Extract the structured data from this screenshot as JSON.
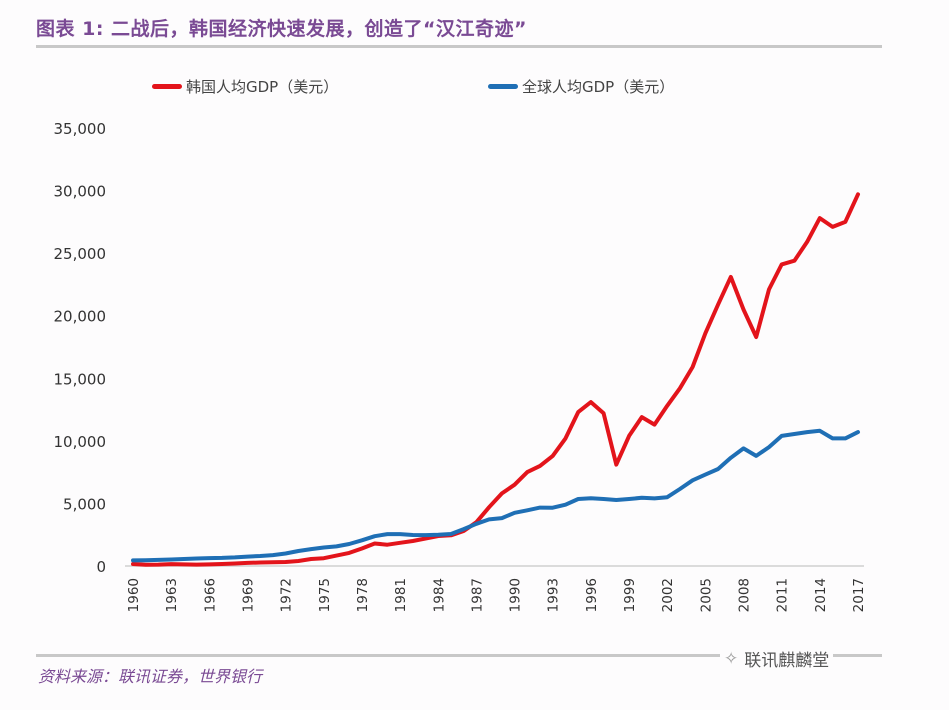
{
  "title": "图表 1: 二战后，韩国经济快速发展，创造了“汉江奇迹”",
  "source": "资料来源：联讯证券，世界银行",
  "watermark": "联讯麒麟堂",
  "chart_data": {
    "type": "line",
    "title": "图表 1: 二战后，韩国经济快速发展，创造了“汉江奇迹”",
    "xlabel": "",
    "ylabel": "",
    "ylim": [
      0,
      35000
    ],
    "yticks": [
      "0",
      "5,000",
      "10,000",
      "15,000",
      "20,000",
      "25,000",
      "30,000",
      "35,000"
    ],
    "ytick_values": [
      0,
      5000,
      10000,
      15000,
      20000,
      25000,
      30000,
      35000
    ],
    "xlim": [
      1960,
      2017
    ],
    "xticks": [
      "1960",
      "1963",
      "1966",
      "1969",
      "1972",
      "1975",
      "1978",
      "1981",
      "1984",
      "1987",
      "1990",
      "1993",
      "1996",
      "1999",
      "2002",
      "2005",
      "2008",
      "2011",
      "2014",
      "2017"
    ],
    "grid": false,
    "legend_position": "top",
    "x": [
      1960,
      1961,
      1962,
      1963,
      1964,
      1965,
      1966,
      1967,
      1968,
      1969,
      1970,
      1971,
      1972,
      1973,
      1974,
      1975,
      1976,
      1977,
      1978,
      1979,
      1980,
      1981,
      1982,
      1983,
      1984,
      1985,
      1986,
      1987,
      1988,
      1989,
      1990,
      1991,
      1992,
      1993,
      1994,
      1995,
      1996,
      1997,
      1998,
      1999,
      2000,
      2001,
      2002,
      2003,
      2004,
      2005,
      2006,
      2007,
      2008,
      2009,
      2010,
      2011,
      2012,
      2013,
      2014,
      2015,
      2016,
      2017
    ],
    "series": [
      {
        "name": "韩国人均GDP（美元）",
        "color": "#e3141b",
        "values": [
          160,
          100,
          110,
          150,
          130,
          110,
          130,
          160,
          200,
          250,
          280,
          300,
          320,
          400,
          560,
          620,
          830,
          1050,
          1400,
          1800,
          1700,
          1850,
          2000,
          2200,
          2400,
          2450,
          2800,
          3500,
          4700,
          5800,
          6500,
          7500,
          8000,
          8800,
          10200,
          12300,
          13100,
          12200,
          8100,
          10400,
          11900,
          11300,
          12800,
          14200,
          15900,
          18600,
          20900,
          23100,
          20500,
          18300,
          22100,
          24100,
          24400,
          25900,
          27800,
          27100,
          27500,
          29700
        ]
      },
      {
        "name": "全球人均GDP（美元）",
        "color": "#1f6fb5",
        "values": [
          450,
          460,
          490,
          520,
          560,
          600,
          630,
          650,
          690,
          750,
          800,
          870,
          1000,
          1200,
          1350,
          1480,
          1570,
          1760,
          2050,
          2380,
          2550,
          2550,
          2480,
          2470,
          2500,
          2560,
          2950,
          3370,
          3720,
          3830,
          4250,
          4450,
          4670,
          4660,
          4900,
          5350,
          5420,
          5350,
          5270,
          5350,
          5450,
          5400,
          5500,
          6150,
          6850,
          7300,
          7750,
          8650,
          9400,
          8800,
          9500,
          10400,
          10550,
          10700,
          10800,
          10200,
          10200,
          10700
        ]
      }
    ]
  }
}
